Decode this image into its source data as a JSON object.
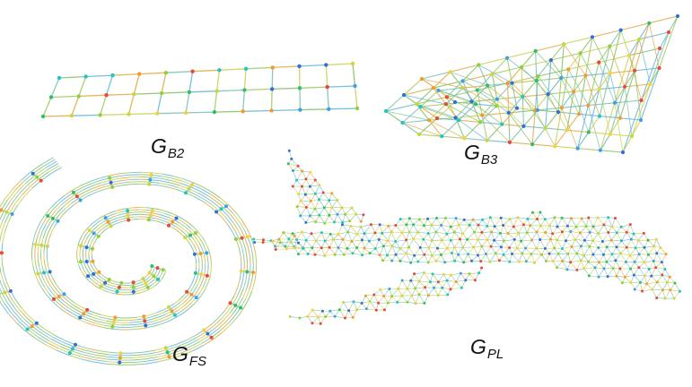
{
  "labels": {
    "b2": {
      "main": "G",
      "sub": "B2"
    },
    "b3": {
      "main": "G",
      "sub": "B3"
    },
    "fs": {
      "main": "G",
      "sub": "FS"
    },
    "pl": {
      "main": "G",
      "sub": "PL"
    }
  },
  "palette": [
    "#2f6fd6",
    "#3aa0e8",
    "#22c4c4",
    "#2fbf6a",
    "#8fd13a",
    "#c8d83a",
    "#f0d23a",
    "#f29a2e",
    "#e8473a"
  ],
  "edge_colors": [
    "#7fbf5f",
    "#9cc95a",
    "#c9cf4e",
    "#5fb4d6",
    "#e0a840",
    "#78c0b0"
  ],
  "grids": {
    "b2": {
      "columns": 12,
      "rows": 3
    },
    "b3": {
      "columns": 10,
      "rows": 3,
      "layers": 3
    }
  },
  "spiral": {
    "turns": 2.6,
    "strands": 6
  }
}
